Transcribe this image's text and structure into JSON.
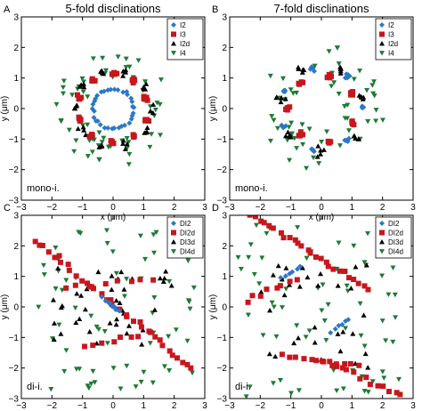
{
  "chart_data": [
    {
      "type": "scatter",
      "panel": "A",
      "title": "5-fold disclinations",
      "annotation": "mono-i.",
      "xlabel": "x (μm)",
      "ylabel": "y (μm)",
      "xlim": [
        -3,
        3
      ],
      "ylim": [
        -3,
        3
      ],
      "xticks": [
        "−3",
        "−2",
        "−1",
        "0",
        "1",
        "2",
        "3"
      ],
      "yticks": [
        "3",
        "2",
        "1",
        "0",
        "−1",
        "−2",
        "−3"
      ],
      "legend_position": "top-right",
      "series": [
        {
          "name": "I2",
          "marker": "diamond",
          "color": "#2b78c9",
          "shape": "ring",
          "params": {
            "cx": 0,
            "cy": 0,
            "r": 0.65,
            "n": 34,
            "jitter": 0.07
          }
        },
        {
          "name": "I3",
          "marker": "square",
          "color": "#c8161d",
          "shape": "clusters",
          "params": {
            "cx": 0,
            "cy": 0,
            "r": 1.15,
            "k": 10,
            "per": 5,
            "spread": 0.12,
            "phase": 0.3
          }
        },
        {
          "name": "I2d",
          "marker": "triangle-up",
          "color": "#000000",
          "shape": "clusters",
          "params": {
            "cx": 0,
            "cy": 0,
            "r": 1.25,
            "k": 10,
            "per": 4,
            "spread": 0.2,
            "phase": 0.62
          }
        },
        {
          "name": "I4",
          "marker": "triangle-down",
          "color": "#1e7a34",
          "shape": "annulus",
          "params": {
            "cx": 0,
            "cy": 0,
            "r0": 0.9,
            "r1": 1.9,
            "n": 60
          }
        }
      ]
    },
    {
      "type": "scatter",
      "panel": "B",
      "title": "7-fold disclinations",
      "annotation": "mono-i.",
      "xlabel": "x (μm)",
      "ylabel": "y (μm)",
      "xlim": [
        -3,
        3
      ],
      "ylim": [
        -3,
        3
      ],
      "xticks": [
        "−3",
        "−2",
        "−1",
        "0",
        "1",
        "2",
        "3"
      ],
      "yticks": [
        "3",
        "2",
        "1",
        "0",
        "−1",
        "−2",
        "−3"
      ],
      "legend_position": "top-right",
      "series": [
        {
          "name": "I2",
          "marker": "diamond",
          "color": "#2b78c9",
          "shape": "clusters",
          "params": {
            "cx": 0,
            "cy": 0,
            "r": 1.35,
            "k": 7,
            "per": 5,
            "spread": 0.12,
            "phase": 0.0
          }
        },
        {
          "name": "I3",
          "marker": "square",
          "color": "#c8161d",
          "shape": "clusters",
          "params": {
            "cx": 0,
            "cy": 0,
            "r": 1.1,
            "k": 7,
            "per": 5,
            "spread": 0.12,
            "phase": 0.45
          }
        },
        {
          "name": "I2d",
          "marker": "triangle-up",
          "color": "#000000",
          "shape": "clusters",
          "params": {
            "cx": 0,
            "cy": 0,
            "r": 1.4,
            "k": 7,
            "per": 5,
            "spread": 0.22,
            "phase": 0.22
          }
        },
        {
          "name": "I4",
          "marker": "triangle-down",
          "color": "#1e7a34",
          "shape": "annulus",
          "params": {
            "cx": 0,
            "cy": 0,
            "r0": 0.7,
            "r1": 2.1,
            "n": 55
          }
        }
      ]
    },
    {
      "type": "scatter",
      "panel": "C",
      "title": "",
      "annotation": "di-i.",
      "xlabel": "x (μm)",
      "ylabel": "y (μm)",
      "xlim": [
        -3,
        3
      ],
      "ylim": [
        -3,
        3
      ],
      "xticks": [
        "−3",
        "−2",
        "−1",
        "0",
        "1",
        "2",
        "3"
      ],
      "yticks": [
        "3",
        "2",
        "1",
        "0",
        "−1",
        "−2",
        "−3"
      ],
      "legend_position": "top-right",
      "series": [
        {
          "name": "DI2",
          "marker": "diamond",
          "color": "#2b78c9",
          "shape": "segments",
          "params": {
            "segs": [
              [
                -0.3,
                0.3,
                0.25,
                -0.2,
                10
              ]
            ],
            "jitter": 0.08
          }
        },
        {
          "name": "DI2d",
          "marker": "square",
          "color": "#c8161d",
          "shape": "segments",
          "params": {
            "segs": [
              [
                -2.6,
                2.2,
                2.6,
                -2.0,
                34
              ],
              [
                -1.6,
                0.6,
                1.4,
                0.9,
                8
              ],
              [
                -0.9,
                -1.3,
                1.1,
                -0.9,
                8
              ]
            ],
            "jitter": 0.15
          }
        },
        {
          "name": "DI3d",
          "marker": "triangle-up",
          "color": "#000000",
          "shape": "box",
          "params": {
            "x0": -2.0,
            "x1": 2.0,
            "y0": -1.3,
            "y1": 1.3,
            "n": 40
          }
        },
        {
          "name": "DI4d",
          "marker": "triangle-down",
          "color": "#1e7a34",
          "shape": "box",
          "params": {
            "x0": -2.6,
            "x1": 2.8,
            "y0": -2.7,
            "y1": 2.7,
            "n": 70
          }
        }
      ]
    },
    {
      "type": "scatter",
      "panel": "D",
      "title": "",
      "annotation": "di-i.",
      "xlabel": "x (μm)",
      "ylabel": "y (μm)",
      "xlim": [
        -3,
        3
      ],
      "ylim": [
        -3,
        3
      ],
      "xticks": [
        "−3",
        "−2",
        "−1",
        "0",
        "1",
        "2",
        "3"
      ],
      "yticks": [
        "3",
        "2",
        "1",
        "0",
        "−1",
        "−2",
        "−3"
      ],
      "legend_position": "top-right",
      "series": [
        {
          "name": "DI2",
          "marker": "diamond",
          "color": "#2b78c9",
          "shape": "segments",
          "params": {
            "segs": [
              [
                -1.3,
                0.9,
                -0.7,
                1.3,
                6
              ],
              [
                0.3,
                -0.8,
                0.9,
                -0.4,
                6
              ]
            ],
            "jitter": 0.08
          }
        },
        {
          "name": "DI2d",
          "marker": "square",
          "color": "#c8161d",
          "shape": "segments",
          "params": {
            "segs": [
              [
                -2.3,
                3.0,
                1.5,
                0.6,
                26
              ],
              [
                0.1,
                -1.8,
                2.6,
                -2.9,
                14
              ],
              [
                -1.3,
                -1.6,
                1.2,
                -1.9,
                12
              ],
              [
                -2.5,
                0.2,
                -0.8,
                0.9,
                8
              ]
            ],
            "jitter": 0.12
          }
        },
        {
          "name": "DI3d",
          "marker": "triangle-up",
          "color": "#000000",
          "shape": "box",
          "params": {
            "x0": -2.0,
            "x1": 1.6,
            "y0": -2.0,
            "y1": 1.4,
            "n": 32
          }
        },
        {
          "name": "DI4d",
          "marker": "triangle-down",
          "color": "#1e7a34",
          "shape": "box",
          "params": {
            "x0": -2.8,
            "x1": 2.6,
            "y0": -3.0,
            "y1": 2.8,
            "n": 70
          }
        }
      ]
    }
  ]
}
